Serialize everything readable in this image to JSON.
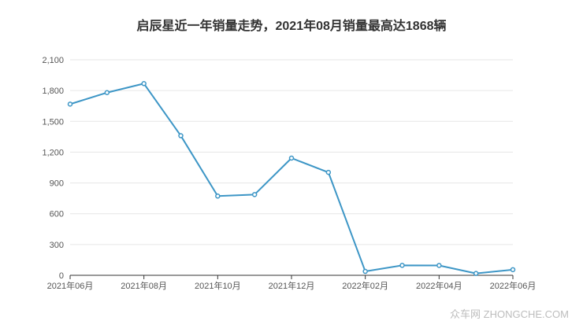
{
  "chart_data": {
    "type": "line",
    "title": "启辰星近一年销量走势，2021年08月销量最高达1868辆",
    "xlabel": "",
    "ylabel": "",
    "x": [
      "2021年06月",
      "2021年07月",
      "2021年08月",
      "2021年09月",
      "2021年10月",
      "2021年11月",
      "2021年12月",
      "2022年01月",
      "2022年02月",
      "2022年03月",
      "2022年04月",
      "2022年05月",
      "2022年06月"
    ],
    "x_tick_labels": [
      "2021年06月",
      "2021年08月",
      "2021年10月",
      "2021年12月",
      "2022年02月",
      "2022年04月",
      "2022年06月"
    ],
    "series": [
      {
        "values": [
          1668,
          1780,
          1868,
          1360,
          772,
          787,
          1142,
          1003,
          38,
          97,
          96,
          18,
          55
        ]
      }
    ],
    "ylim": [
      0,
      2100
    ],
    "yticks": [
      0,
      300,
      600,
      900,
      1200,
      1500,
      1800,
      2100
    ],
    "y_tick_labels": [
      "0",
      "300",
      "600",
      "900",
      "1,200",
      "1,500",
      "1,800",
      "2,100"
    ],
    "grid": true,
    "line_color": "#3d96c6",
    "grid_color": "#e6e6e6"
  },
  "watermark": "众车网 ZHONGCHE.COM"
}
